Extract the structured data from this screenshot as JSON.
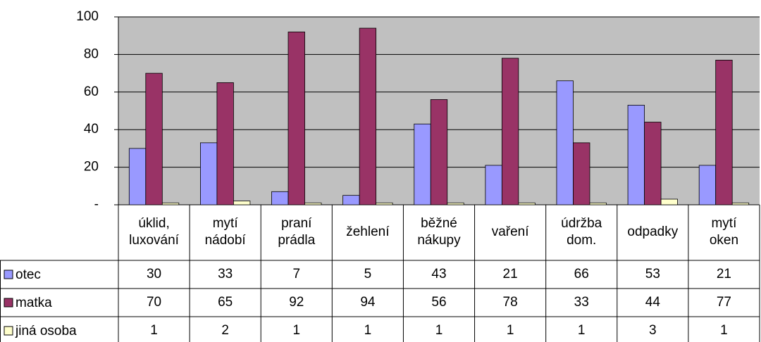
{
  "chart_data": {
    "type": "bar",
    "categories": [
      "úklid, luxování",
      "mytí nádobí",
      "praní prádla",
      "žehlení",
      "běžné nákupy",
      "vaření",
      "údržba dom.",
      "odpadky",
      "mytí oken"
    ],
    "series": [
      {
        "name": "otec",
        "color": "#9999ff",
        "values": [
          30,
          33,
          7,
          5,
          43,
          21,
          66,
          53,
          21
        ]
      },
      {
        "name": "matka",
        "color": "#993366",
        "values": [
          70,
          65,
          92,
          94,
          56,
          78,
          33,
          44,
          77
        ]
      },
      {
        "name": "jiná osoba",
        "color": "#ffffcc",
        "values": [
          1,
          2,
          1,
          1,
          1,
          1,
          1,
          3,
          1
        ]
      }
    ],
    "ylim": [
      0,
      100
    ],
    "yticks": [
      {
        "value": 0,
        "label": "-"
      },
      20,
      40,
      60,
      80,
      100
    ],
    "grid": true,
    "plot_background": "#c0c0c0"
  }
}
